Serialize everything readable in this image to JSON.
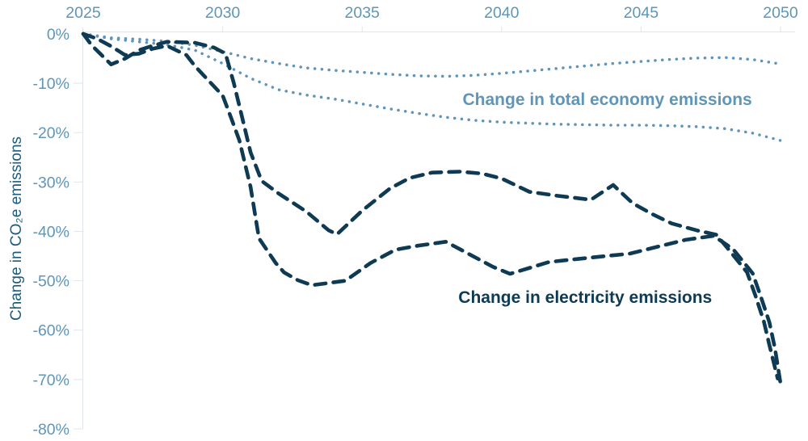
{
  "colors": {
    "accent_blue": "#5f96b8",
    "dotted_line_blue": "#6095ba",
    "dark_navy": "#0e3a54",
    "axis_gray": "#dfe5ea",
    "y_axis_title_color": "#1d5b7c",
    "background": "#ffffff"
  },
  "chart_data": {
    "type": "line",
    "title": "",
    "x_axis": {
      "position": "top",
      "range": [
        2025,
        2050
      ],
      "ticks": [
        2025,
        2030,
        2035,
        2040,
        2045,
        2050
      ],
      "tick_labels": [
        "2025",
        "2030",
        "2035",
        "2040",
        "2045",
        "2050"
      ]
    },
    "y_axis": {
      "label": "Change in CO₂e emissions",
      "unit": "%",
      "range": [
        -80,
        0
      ],
      "tick_values": [
        0,
        -10,
        -20,
        -30,
        -40,
        -50,
        -60,
        -70,
        -80
      ],
      "tick_labels": [
        "0%",
        "-10%",
        "-20%",
        "-30%",
        "-40%",
        "-50%",
        "-60%",
        "-70%",
        "-80%"
      ]
    },
    "grid": "off",
    "legend": "inline-annotations",
    "annotations": [
      {
        "text": "Change in total economy emissions",
        "color": "#5f96b8",
        "anchor_year": 2038.6,
        "anchor_pct": -14.4
      },
      {
        "text": "Change in electricity emissions",
        "color": "#0e3a54",
        "anchor_year": 2038.45,
        "anchor_pct": -54.5
      }
    ],
    "series": [
      {
        "id": "total-economy-scenario-1",
        "name": "Change in total economy emissions (scenario 1, upper dotted)",
        "style": "dotted",
        "color": "#6095ba",
        "points": [
          [
            2025,
            0
          ],
          [
            2026,
            -0.8
          ],
          [
            2027,
            -1.1
          ],
          [
            2028,
            -1.5
          ],
          [
            2029,
            -2.3
          ],
          [
            2030,
            -3.6
          ],
          [
            2031,
            -5.0
          ],
          [
            2032,
            -6.0
          ],
          [
            2033,
            -6.9
          ],
          [
            2034,
            -7.4
          ],
          [
            2035,
            -7.8
          ],
          [
            2036,
            -8.2
          ],
          [
            2037,
            -8.5
          ],
          [
            2038,
            -8.6
          ],
          [
            2039,
            -8.4
          ],
          [
            2040,
            -8.0
          ],
          [
            2041,
            -7.5
          ],
          [
            2042,
            -7.0
          ],
          [
            2043,
            -6.5
          ],
          [
            2044,
            -6.0
          ],
          [
            2045,
            -5.6
          ],
          [
            2046,
            -5.2
          ],
          [
            2047,
            -4.9
          ],
          [
            2048,
            -4.8
          ],
          [
            2049,
            -5.2
          ],
          [
            2050,
            -6.1
          ]
        ]
      },
      {
        "id": "total-economy-scenario-2",
        "name": "Change in total economy emissions (scenario 2, lower dotted)",
        "style": "dotted",
        "color": "#6095ba",
        "points": [
          [
            2025,
            0
          ],
          [
            2026,
            -1.0
          ],
          [
            2027,
            -1.6
          ],
          [
            2028,
            -2.2
          ],
          [
            2029,
            -3.3
          ],
          [
            2030,
            -6.0
          ],
          [
            2031,
            -9.0
          ],
          [
            2032,
            -11.3
          ],
          [
            2033,
            -12.4
          ],
          [
            2034,
            -13.2
          ],
          [
            2035,
            -14.2
          ],
          [
            2036,
            -15.2
          ],
          [
            2037,
            -16.1
          ],
          [
            2038,
            -16.9
          ],
          [
            2039,
            -17.5
          ],
          [
            2040,
            -17.9
          ],
          [
            2041,
            -18.1
          ],
          [
            2042,
            -18.3
          ],
          [
            2043,
            -18.4
          ],
          [
            2044,
            -18.5
          ],
          [
            2045,
            -18.5
          ],
          [
            2046,
            -18.6
          ],
          [
            2047,
            -18.8
          ],
          [
            2048,
            -19.2
          ],
          [
            2049,
            -20.1
          ],
          [
            2050,
            -21.6
          ]
        ]
      },
      {
        "id": "electricity-scenario-1",
        "name": "Change in electricity emissions (scenario 1)",
        "style": "dashed",
        "color": "#0e3a54",
        "points": [
          [
            2025,
            0
          ],
          [
            2025.3,
            -2.3
          ],
          [
            2026,
            -6.2
          ],
          [
            2026.5,
            -5.0
          ],
          [
            2027,
            -3.3
          ],
          [
            2027.5,
            -2.4
          ],
          [
            2028,
            -1.6
          ],
          [
            2029,
            -1.8
          ],
          [
            2029.7,
            -2.8
          ],
          [
            2030.1,
            -4.0
          ],
          [
            2030.4,
            -10
          ],
          [
            2030.7,
            -17
          ],
          [
            2031,
            -24
          ],
          [
            2031.4,
            -29.8
          ],
          [
            2032,
            -32.3
          ],
          [
            2033,
            -36
          ],
          [
            2033.8,
            -39.8
          ],
          [
            2034.1,
            -40.6
          ],
          [
            2035,
            -35.8
          ],
          [
            2036,
            -31.3
          ],
          [
            2036.7,
            -29.2
          ],
          [
            2037.5,
            -28.1
          ],
          [
            2038.5,
            -27.9
          ],
          [
            2039.3,
            -28.3
          ],
          [
            2040,
            -29.3
          ],
          [
            2041,
            -32
          ],
          [
            2042,
            -32.8
          ],
          [
            2043.2,
            -33.6
          ],
          [
            2044,
            -30.6
          ],
          [
            2044.7,
            -34.3
          ],
          [
            2045.4,
            -36.5
          ],
          [
            2046.1,
            -38.4
          ],
          [
            2047,
            -39.8
          ],
          [
            2047.7,
            -40.7
          ],
          [
            2048.1,
            -43.4
          ],
          [
            2048.8,
            -48.3
          ],
          [
            2049.1,
            -53
          ],
          [
            2049.4,
            -58.2
          ],
          [
            2049.6,
            -63
          ],
          [
            2049.9,
            -69.8
          ]
        ]
      },
      {
        "id": "electricity-scenario-2",
        "name": "Change in electricity emissions (scenario 2)",
        "style": "dashed",
        "color": "#0e3a54",
        "points": [
          [
            2025,
            0
          ],
          [
            2025.5,
            -1.0
          ],
          [
            2026,
            -2.5
          ],
          [
            2026.5,
            -4.3
          ],
          [
            2027,
            -4.0
          ],
          [
            2027.5,
            -3.0
          ],
          [
            2028,
            -2.4
          ],
          [
            2028.7,
            -4.3
          ],
          [
            2029,
            -6.5
          ],
          [
            2029.5,
            -9.5
          ],
          [
            2030,
            -12.5
          ],
          [
            2030.3,
            -17
          ],
          [
            2030.6,
            -21.6
          ],
          [
            2031,
            -31
          ],
          [
            2031.3,
            -41.4
          ],
          [
            2031.9,
            -46.4
          ],
          [
            2032.2,
            -48.3
          ],
          [
            2032.7,
            -49.9
          ],
          [
            2033.2,
            -50.9
          ],
          [
            2034.4,
            -50
          ],
          [
            2035.3,
            -46.4
          ],
          [
            2036.2,
            -43.7
          ],
          [
            2037,
            -42.9
          ],
          [
            2038,
            -42.1
          ],
          [
            2038.8,
            -44.5
          ],
          [
            2039.7,
            -47.2
          ],
          [
            2040.3,
            -48.6
          ],
          [
            2041.7,
            -46.2
          ],
          [
            2043.2,
            -45.3
          ],
          [
            2044.6,
            -44.5
          ],
          [
            2045.6,
            -43.1
          ],
          [
            2046.6,
            -41.7
          ],
          [
            2047.6,
            -40.9
          ],
          [
            2048.3,
            -43.6
          ],
          [
            2049,
            -48.5
          ],
          [
            2049.3,
            -53.3
          ],
          [
            2049.6,
            -58.4
          ],
          [
            2049.8,
            -63.7
          ],
          [
            2050,
            -70.8
          ]
        ]
      }
    ]
  }
}
